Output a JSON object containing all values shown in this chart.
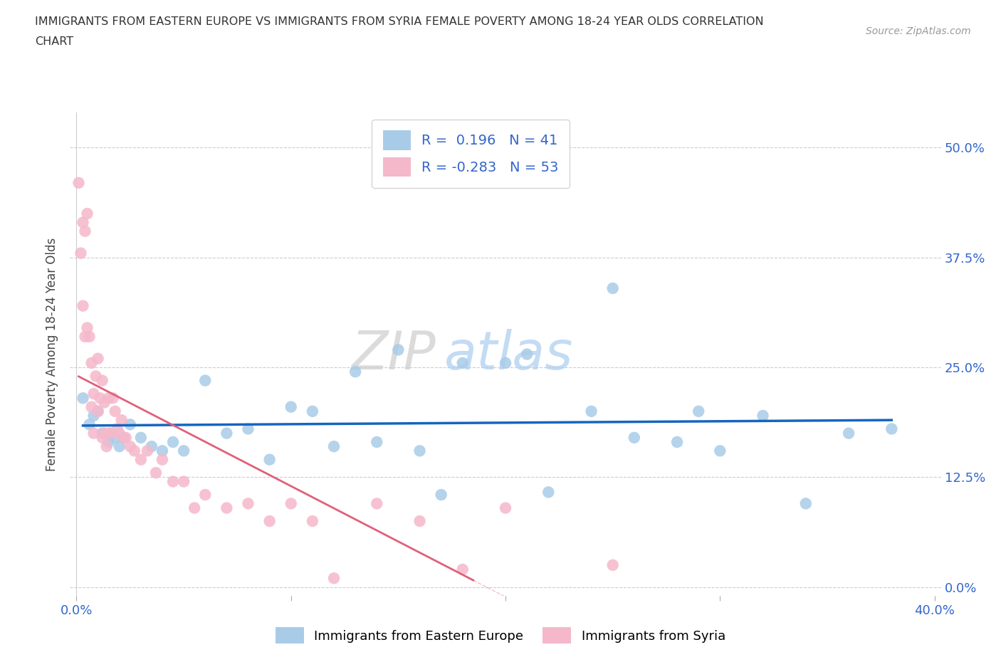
{
  "title_line1": "IMMIGRANTS FROM EASTERN EUROPE VS IMMIGRANTS FROM SYRIA FEMALE POVERTY AMONG 18-24 YEAR OLDS CORRELATION",
  "title_line2": "CHART",
  "source_text": "Source: ZipAtlas.com",
  "ylabel": "Female Poverty Among 18-24 Year Olds",
  "xlim": [
    -0.003,
    0.403
  ],
  "ylim": [
    -0.01,
    0.54
  ],
  "ytick_vals": [
    0.0,
    0.125,
    0.25,
    0.375,
    0.5
  ],
  "ytick_labels_right": [
    "0.0%",
    "12.5%",
    "25.0%",
    "37.5%",
    "50.0%"
  ],
  "xtick_vals": [
    0.0,
    0.1,
    0.2,
    0.3,
    0.4
  ],
  "xtick_labels": [
    "0.0%",
    "",
    "",
    "",
    "40.0%"
  ],
  "legend_entry1": "R =  0.196   N = 41",
  "legend_entry2": "R = -0.283   N = 53",
  "color_eastern": "#a8cce8",
  "color_syria": "#f5b8cb",
  "trend_color_eastern": "#1565c0",
  "trend_color_syria": "#e0607a",
  "watermark_zip": "ZIP",
  "watermark_atlas": "atlas",
  "legend_text_color": "#3366cc",
  "eastern_europe_x": [
    0.003,
    0.006,
    0.008,
    0.01,
    0.012,
    0.015,
    0.018,
    0.02,
    0.022,
    0.025,
    0.03,
    0.035,
    0.04,
    0.045,
    0.05,
    0.06,
    0.07,
    0.08,
    0.09,
    0.1,
    0.11,
    0.12,
    0.13,
    0.14,
    0.16,
    0.17,
    0.18,
    0.2,
    0.22,
    0.24,
    0.26,
    0.28,
    0.3,
    0.32,
    0.34,
    0.36,
    0.38,
    0.15,
    0.21,
    0.25,
    0.29
  ],
  "eastern_europe_y": [
    0.215,
    0.185,
    0.195,
    0.2,
    0.175,
    0.165,
    0.17,
    0.16,
    0.17,
    0.185,
    0.17,
    0.16,
    0.155,
    0.165,
    0.155,
    0.235,
    0.175,
    0.18,
    0.145,
    0.205,
    0.2,
    0.16,
    0.245,
    0.165,
    0.155,
    0.105,
    0.255,
    0.255,
    0.108,
    0.2,
    0.17,
    0.165,
    0.155,
    0.195,
    0.095,
    0.175,
    0.18,
    0.27,
    0.265,
    0.34,
    0.2
  ],
  "syria_x": [
    0.001,
    0.002,
    0.003,
    0.003,
    0.004,
    0.004,
    0.005,
    0.005,
    0.006,
    0.007,
    0.007,
    0.008,
    0.008,
    0.009,
    0.01,
    0.01,
    0.011,
    0.012,
    0.012,
    0.013,
    0.013,
    0.014,
    0.015,
    0.015,
    0.016,
    0.017,
    0.018,
    0.019,
    0.02,
    0.021,
    0.022,
    0.023,
    0.025,
    0.027,
    0.03,
    0.033,
    0.037,
    0.04,
    0.045,
    0.05,
    0.055,
    0.06,
    0.07,
    0.08,
    0.09,
    0.1,
    0.11,
    0.12,
    0.14,
    0.16,
    0.18,
    0.2,
    0.25
  ],
  "syria_y": [
    0.46,
    0.38,
    0.415,
    0.32,
    0.405,
    0.285,
    0.425,
    0.295,
    0.285,
    0.205,
    0.255,
    0.22,
    0.175,
    0.24,
    0.26,
    0.2,
    0.215,
    0.235,
    0.17,
    0.21,
    0.175,
    0.16,
    0.215,
    0.175,
    0.175,
    0.215,
    0.2,
    0.18,
    0.175,
    0.19,
    0.17,
    0.17,
    0.16,
    0.155,
    0.145,
    0.155,
    0.13,
    0.145,
    0.12,
    0.12,
    0.09,
    0.105,
    0.09,
    0.095,
    0.075,
    0.095,
    0.075,
    0.01,
    0.095,
    0.075,
    0.02,
    0.09,
    0.025
  ],
  "syria_trend_xrange": [
    0.001,
    0.185
  ],
  "eastern_trend_xrange": [
    0.003,
    0.38
  ]
}
